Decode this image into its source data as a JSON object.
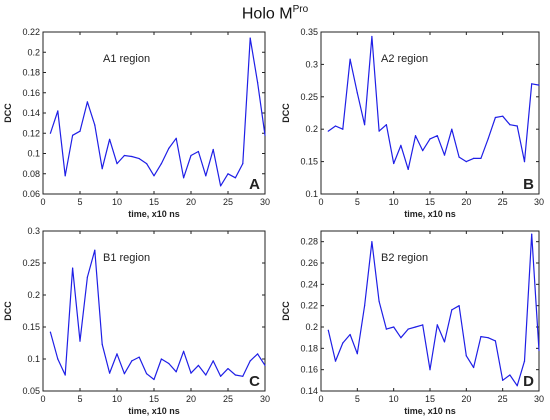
{
  "figure": {
    "title_main": "Holo M",
    "title_sup": "Pro"
  },
  "chart_data": [
    {
      "type": "line",
      "title": "A1 region",
      "panel_letter": "A",
      "xlabel": "time, x10 ns",
      "ylabel": "DCC",
      "xlim": [
        0,
        30
      ],
      "ylim": [
        0.06,
        0.22
      ],
      "xticks": [
        0,
        5,
        10,
        15,
        20,
        25,
        30
      ],
      "yticks": [
        0.06,
        0.08,
        0.1,
        0.12,
        0.14,
        0.16,
        0.18,
        0.2,
        0.22
      ],
      "ytick_labels": [
        "0.06",
        "0.08",
        "0.1",
        "0.12",
        "0.14",
        "0.16",
        "0.18",
        "0.2",
        "0.22"
      ],
      "grid": false,
      "series": [
        {
          "color": "#1f1fe6",
          "x": [
            1,
            2,
            3,
            4,
            5,
            6,
            7,
            8,
            9,
            10,
            11,
            12,
            13,
            14,
            15,
            16,
            17,
            18,
            19,
            20,
            21,
            22,
            23,
            24,
            25,
            26,
            27,
            28,
            29,
            30
          ],
          "y": [
            0.12,
            0.142,
            0.078,
            0.118,
            0.122,
            0.151,
            0.128,
            0.085,
            0.114,
            0.09,
            0.098,
            0.097,
            0.095,
            0.09,
            0.078,
            0.09,
            0.105,
            0.115,
            0.076,
            0.098,
            0.102,
            0.078,
            0.104,
            0.068,
            0.08,
            0.076,
            0.09,
            0.214,
            0.17,
            0.118
          ]
        }
      ]
    },
    {
      "type": "line",
      "title": "A2 region",
      "panel_letter": "B",
      "xlabel": "time, x10 ns",
      "ylabel": "DCC",
      "xlim": [
        0,
        30
      ],
      "ylim": [
        0.1,
        0.35
      ],
      "xticks": [
        0,
        5,
        10,
        15,
        20,
        25,
        30
      ],
      "yticks": [
        0.1,
        0.15,
        0.2,
        0.25,
        0.3,
        0.35
      ],
      "ytick_labels": [
        "0.1",
        "0.15",
        "0.2",
        "0.25",
        "0.3",
        "0.35"
      ],
      "grid": false,
      "series": [
        {
          "color": "#1f1fe6",
          "x": [
            1,
            2,
            3,
            4,
            5,
            6,
            7,
            8,
            9,
            10,
            11,
            12,
            13,
            14,
            15,
            16,
            17,
            18,
            19,
            20,
            21,
            22,
            23,
            24,
            25,
            26,
            27,
            28,
            29,
            30
          ],
          "y": [
            0.197,
            0.205,
            0.2,
            0.308,
            0.256,
            0.207,
            0.343,
            0.197,
            0.207,
            0.147,
            0.175,
            0.138,
            0.19,
            0.167,
            0.185,
            0.19,
            0.16,
            0.2,
            0.157,
            0.15,
            0.155,
            0.155,
            0.185,
            0.218,
            0.22,
            0.207,
            0.205,
            0.15,
            0.27,
            0.268
          ]
        }
      ]
    },
    {
      "type": "line",
      "title": "B1 region",
      "panel_letter": "C",
      "xlabel": "time, x10 ns",
      "ylabel": "DCC",
      "xlim": [
        0,
        30
      ],
      "ylim": [
        0.05,
        0.3
      ],
      "xticks": [
        0,
        5,
        10,
        15,
        20,
        25,
        30
      ],
      "yticks": [
        0.05,
        0.1,
        0.15,
        0.2,
        0.25,
        0.3
      ],
      "ytick_labels": [
        "0.05",
        "0.1",
        "0.15",
        "0.2",
        "0.25",
        "0.3"
      ],
      "grid": false,
      "series": [
        {
          "color": "#1f1fe6",
          "x": [
            1,
            2,
            3,
            4,
            5,
            6,
            7,
            8,
            9,
            10,
            11,
            12,
            13,
            14,
            15,
            16,
            17,
            18,
            19,
            20,
            21,
            22,
            23,
            24,
            25,
            26,
            27,
            28,
            29,
            30
          ],
          "y": [
            0.142,
            0.1,
            0.075,
            0.242,
            0.128,
            0.228,
            0.27,
            0.123,
            0.078,
            0.108,
            0.077,
            0.097,
            0.103,
            0.077,
            0.068,
            0.1,
            0.093,
            0.08,
            0.112,
            0.078,
            0.09,
            0.075,
            0.097,
            0.073,
            0.085,
            0.075,
            0.073,
            0.097,
            0.108,
            0.09
          ]
        }
      ]
    },
    {
      "type": "line",
      "title": "B2 region",
      "panel_letter": "D",
      "xlabel": "time, x10 ns",
      "ylabel": "DCC",
      "xlim": [
        0,
        30
      ],
      "ylim": [
        0.14,
        0.29
      ],
      "xticks": [
        0,
        5,
        10,
        15,
        20,
        25,
        30
      ],
      "yticks": [
        0.14,
        0.16,
        0.18,
        0.2,
        0.22,
        0.24,
        0.26,
        0.28
      ],
      "ytick_labels": [
        "0.14",
        "0.16",
        "0.18",
        "0.2",
        "0.22",
        "0.24",
        "0.26",
        "0.28"
      ],
      "grid": false,
      "series": [
        {
          "color": "#1f1fe6",
          "x": [
            1,
            2,
            3,
            4,
            5,
            6,
            7,
            8,
            9,
            10,
            11,
            12,
            13,
            14,
            15,
            16,
            17,
            18,
            19,
            20,
            21,
            22,
            23,
            24,
            25,
            26,
            27,
            28,
            29,
            30
          ],
          "y": [
            0.197,
            0.168,
            0.185,
            0.193,
            0.175,
            0.22,
            0.28,
            0.224,
            0.198,
            0.2,
            0.19,
            0.198,
            0.2,
            0.202,
            0.16,
            0.202,
            0.186,
            0.216,
            0.22,
            0.173,
            0.162,
            0.191,
            0.19,
            0.187,
            0.15,
            0.155,
            0.145,
            0.168,
            0.287,
            0.178
          ]
        }
      ]
    }
  ]
}
